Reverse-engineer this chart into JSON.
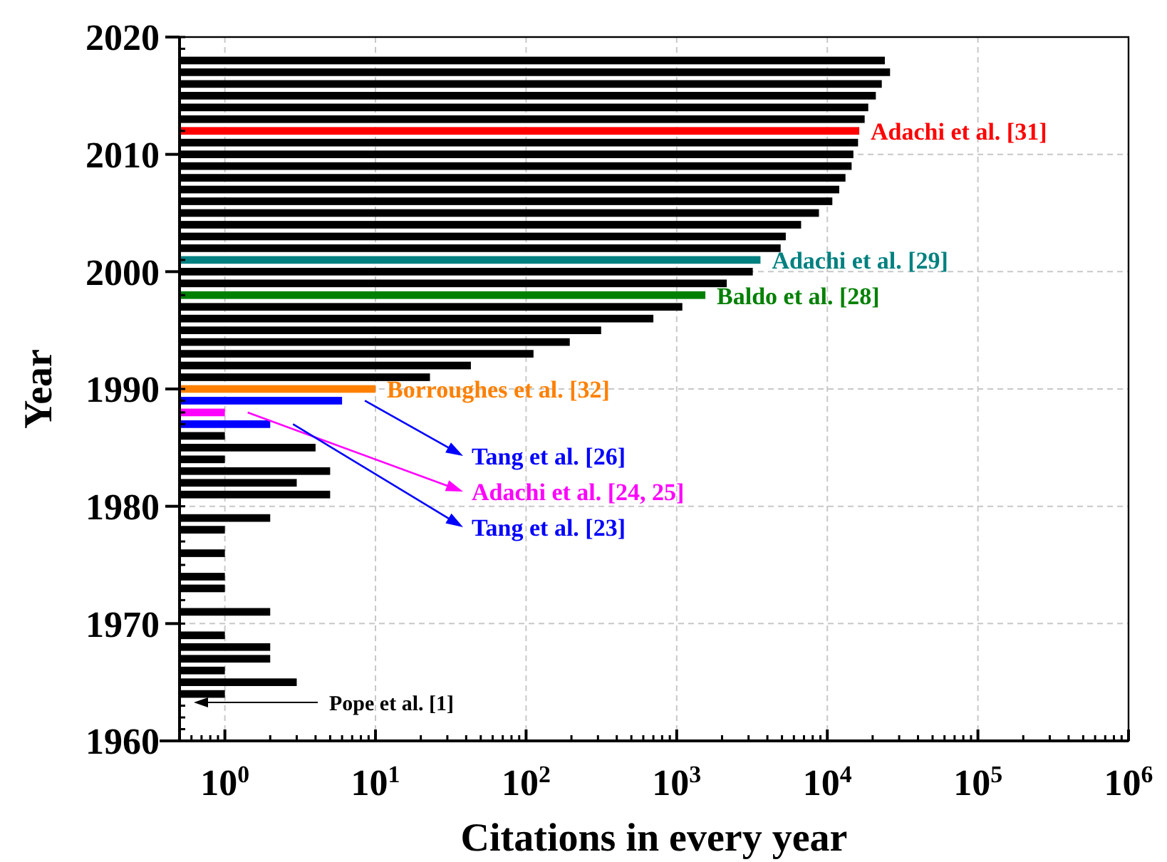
{
  "chart_data": {
    "type": "bar",
    "orientation": "horizontal",
    "log": "x",
    "xlabel": "Citations in every year",
    "ylabel": "Year",
    "xlim": [
      0.5,
      1000000
    ],
    "xticks": [
      {
        "value": 1,
        "label": "10$^{0}$"
      },
      {
        "value": 10,
        "label": "10$^{1}$"
      },
      {
        "value": 100,
        "label": "10$^{2}$"
      },
      {
        "value": 1000,
        "label": "10$^{3}$"
      },
      {
        "value": 10000,
        "label": "10$^{4}$"
      },
      {
        "value": 100000,
        "label": "10$^{5}$"
      },
      {
        "value": 1000000,
        "label": "10$^{6}$"
      }
    ],
    "ylim": [
      1960,
      2020
    ],
    "yticks": [
      1960,
      1970,
      1980,
      1990,
      2000,
      2010,
      2020
    ],
    "grid": true,
    "series": [
      {
        "color": "#000000",
        "x": [
          1964,
          1965,
          1966,
          1967,
          1968,
          1969,
          1971,
          1973,
          1974,
          1976,
          1978,
          1979,
          1981,
          1982,
          1983,
          1984,
          1985,
          1986,
          1991,
          1992,
          1993,
          1994,
          1995,
          1996,
          1997,
          1999,
          2000,
          2002,
          2003,
          2004,
          2005,
          2006,
          2007,
          2008,
          2009,
          2010,
          2011,
          2013,
          2014,
          2015,
          2016,
          2017,
          2018
        ],
        "values": [
          1,
          3,
          1,
          2,
          2,
          1,
          2,
          1,
          1,
          1,
          1,
          2,
          5,
          3,
          5,
          1,
          4,
          1,
          23,
          43,
          112,
          195,
          315,
          700,
          1090,
          2150,
          3200,
          4900,
          5300,
          6700,
          8800,
          10800,
          12000,
          13200,
          14500,
          14900,
          16000,
          17700,
          18700,
          21000,
          23000,
          26100,
          24100
        ]
      },
      {
        "name": "Adachi et al. [31]",
        "color": "#ff0000",
        "x": [
          2012
        ],
        "values": [
          16300
        ]
      },
      {
        "name": "Adachi et al. [29]",
        "color": "#008080",
        "x": [
          2001
        ],
        "values": [
          3600
        ]
      },
      {
        "name": "Baldo et al. [28]",
        "color": "#008000",
        "x": [
          1998
        ],
        "values": [
          1550
        ]
      },
      {
        "name": "Borroughes et al. [32]",
        "color": "#ff8000",
        "x": [
          1990
        ],
        "values": [
          10
        ]
      },
      {
        "name": "Tang et al. [26]",
        "color": "#0000ff",
        "x": [
          1989
        ],
        "values": [
          6
        ]
      },
      {
        "name": "Adachi et al. [24, 25]",
        "color": "#ff00ff",
        "x": [
          1988
        ],
        "values": [
          1
        ]
      },
      {
        "name": "Tang et al. [23]",
        "color": "#0000ff",
        "x": [
          1987
        ],
        "values": [
          2
        ]
      }
    ],
    "annotations": [
      "Pope et al. [1]"
    ]
  }
}
